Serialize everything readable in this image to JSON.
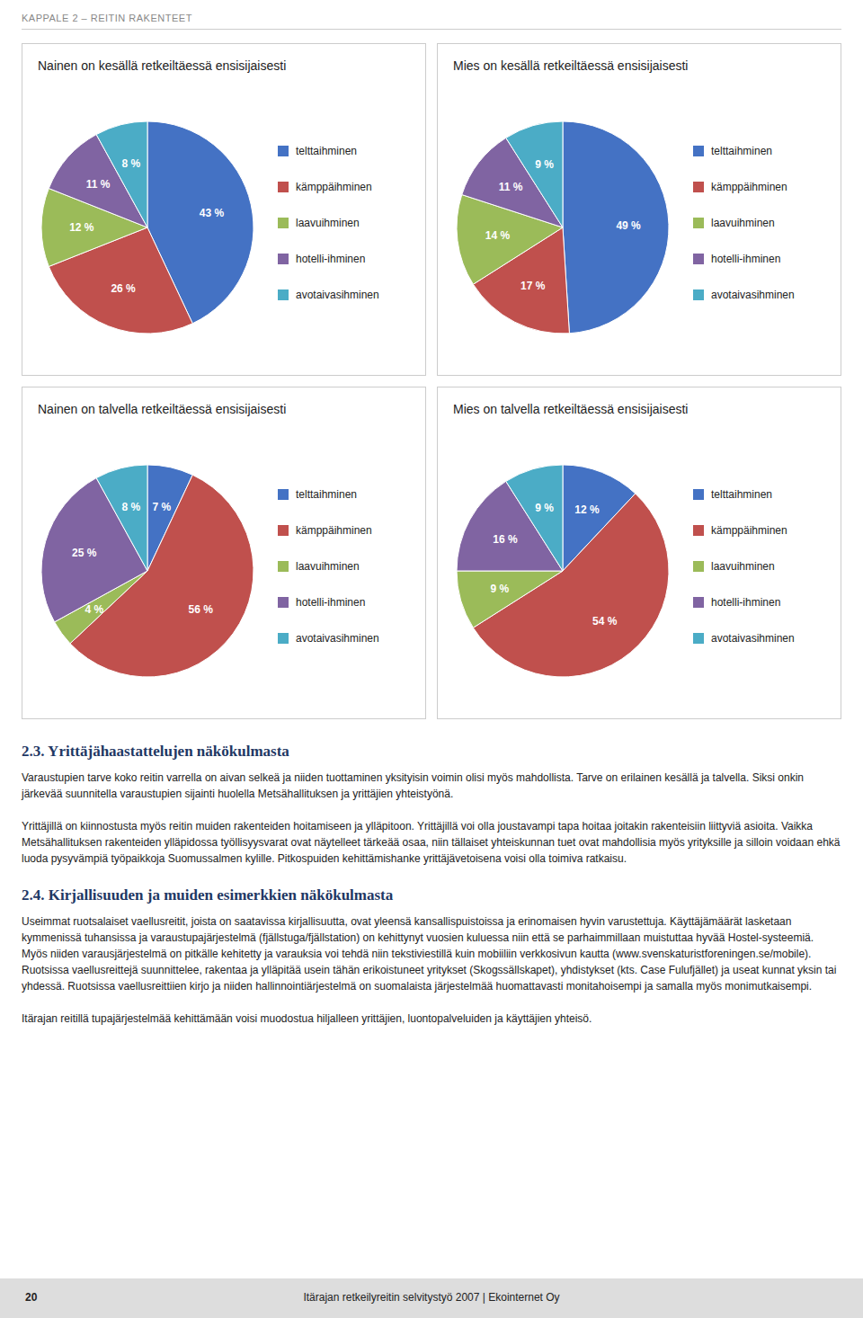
{
  "chart_data": [
    {
      "type": "pie",
      "title": "Nainen on  kesällä retkeiltäessä ensisijaisesti",
      "categories": [
        "telttaihminen",
        "kämppäihminen",
        "laavuihminen",
        "hotelli-ihminen",
        "avotaivasihminen"
      ],
      "values": [
        43,
        26,
        12,
        11,
        8
      ],
      "value_labels": [
        "43 %",
        "26 %",
        "12 %",
        "11 %",
        "8 %"
      ],
      "colors": [
        "#4472C4",
        "#C0504D",
        "#9BBB59",
        "#8064A2",
        "#4BACC6"
      ],
      "data_labels": true,
      "legend": "right"
    },
    {
      "type": "pie",
      "title": "Mies on  kesällä retkeiltäessä ensisijaisesti",
      "categories": [
        "telttaihminen",
        "kämppäihminen",
        "laavuihminen",
        "hotelli-ihminen",
        "avotaivasihminen"
      ],
      "values": [
        49,
        17,
        14,
        11,
        9
      ],
      "value_labels": [
        "49 %",
        "17 %",
        "14 %",
        "11 %",
        "9 %"
      ],
      "colors": [
        "#4472C4",
        "#C0504D",
        "#9BBB59",
        "#8064A2",
        "#4BACC6"
      ],
      "data_labels": true,
      "legend": "right"
    },
    {
      "type": "pie",
      "title": "Nainen on talvella retkeiltäessä ensisijaisesti",
      "categories": [
        "telttaihminen",
        "kämppäihminen",
        "laavuihminen",
        "hotelli-ihminen",
        "avotaivasihminen"
      ],
      "values": [
        7,
        56,
        4,
        25,
        8
      ],
      "value_labels": [
        "7 %",
        "56 %",
        "4 %",
        "25 %",
        "8 %"
      ],
      "colors": [
        "#4472C4",
        "#C0504D",
        "#9BBB59",
        "#8064A2",
        "#4BACC6"
      ],
      "data_labels": true,
      "legend": "right"
    },
    {
      "type": "pie",
      "title": "Mies on talvella retkeiltäessä ensisijaisesti",
      "categories": [
        "telttaihminen",
        "kämppäihminen",
        "laavuihminen",
        "hotelli-ihminen",
        "avotaivasihminen"
      ],
      "values": [
        12,
        54,
        9,
        16,
        9
      ],
      "value_labels": [
        "12 %",
        "54 %",
        "9 %",
        "16 %",
        "9 %"
      ],
      "colors": [
        "#4472C4",
        "#C0504D",
        "#9BBB59",
        "#8064A2",
        "#4BACC6"
      ],
      "data_labels": true,
      "legend": "right"
    }
  ],
  "header": "KAPPALE 2 – REITIN RAKENTEET",
  "sections": [
    {
      "title": "2.3. Yrittäjähaastattelujen näkökulmasta",
      "body": "Varaustupien tarve koko reitin varrella on aivan selkeä ja niiden tuottaminen yksityisin voimin olisi myös mahdollista. Tarve on erilainen kesällä ja talvella. Siksi onkin järkevää suunnitella varaustupien sijainti huolella Metsähallituksen ja yrittäjien yhteistyönä.\n\nYrittäjillä on kiinnostusta myös reitin muiden rakenteiden hoitamiseen ja ylläpitoon. Yrittäjillä voi olla joustavampi tapa hoitaa joitakin rakenteisiin liittyviä asioita. Vaikka Metsähallituksen rakenteiden ylläpidossa työllisyysvarat ovat näytelleet tärkeää osaa, niin tällaiset yhteiskunnan tuet ovat mahdollisia myös yrityksille ja silloin voidaan ehkä luoda pysyvämpiä työpaikkoja Suomussalmen kylille. Pitkospuiden kehittämishanke yrittäjävetoisena voisi olla toimiva ratkaisu."
    },
    {
      "title": "2.4. Kirjallisuuden ja muiden esimerkkien näkökulmasta",
      "body": "Useimmat ruotsalaiset vaellusreitit, joista on saatavissa kirjallisuutta, ovat yleensä kansallispuistoissa ja erinomaisen hyvin varustettuja. Käyttäjämäärät lasketaan kymmenissä tuhansissa ja varaustupajärjestelmä (fjällstuga/fjällstation) on kehittynyt vuosien kuluessa niin että se parhaimmillaan muistuttaa hyvää Hostel-systeemiä. Myös niiden varausjärjestelmä on pitkälle kehitetty ja varauksia voi tehdä niin tekstiviestillä kuin mobiiliin verkkosivun kautta (www.svenskaturistforeningen.se/mobile). Ruotsissa vaellusreittejä suunnittelee, rakentaa ja ylläpitää usein tähän erikoistuneet yritykset (Skogssällskapet), yhdistykset (kts. Case Fulufjället) ja useat kunnat yksin tai yhdessä. Ruotsissa vaellusreittiien kirjo ja niiden hallinnointiärjestelmä on suomalaista järjestelmää huomattavasti monitahoisempi ja samalla myös monimutkaisempi.\n\nItärajan reitillä tupajärjestelmää kehittämään voisi muodostua hiljalleen yrittäjien, luontopalveluiden ja käyttäjien yhteisö."
    }
  ],
  "footer_number": "20",
  "footer_text": "Itärajan retkeilyreitin selvitystyö 2007  |  Ekointernet Oy"
}
